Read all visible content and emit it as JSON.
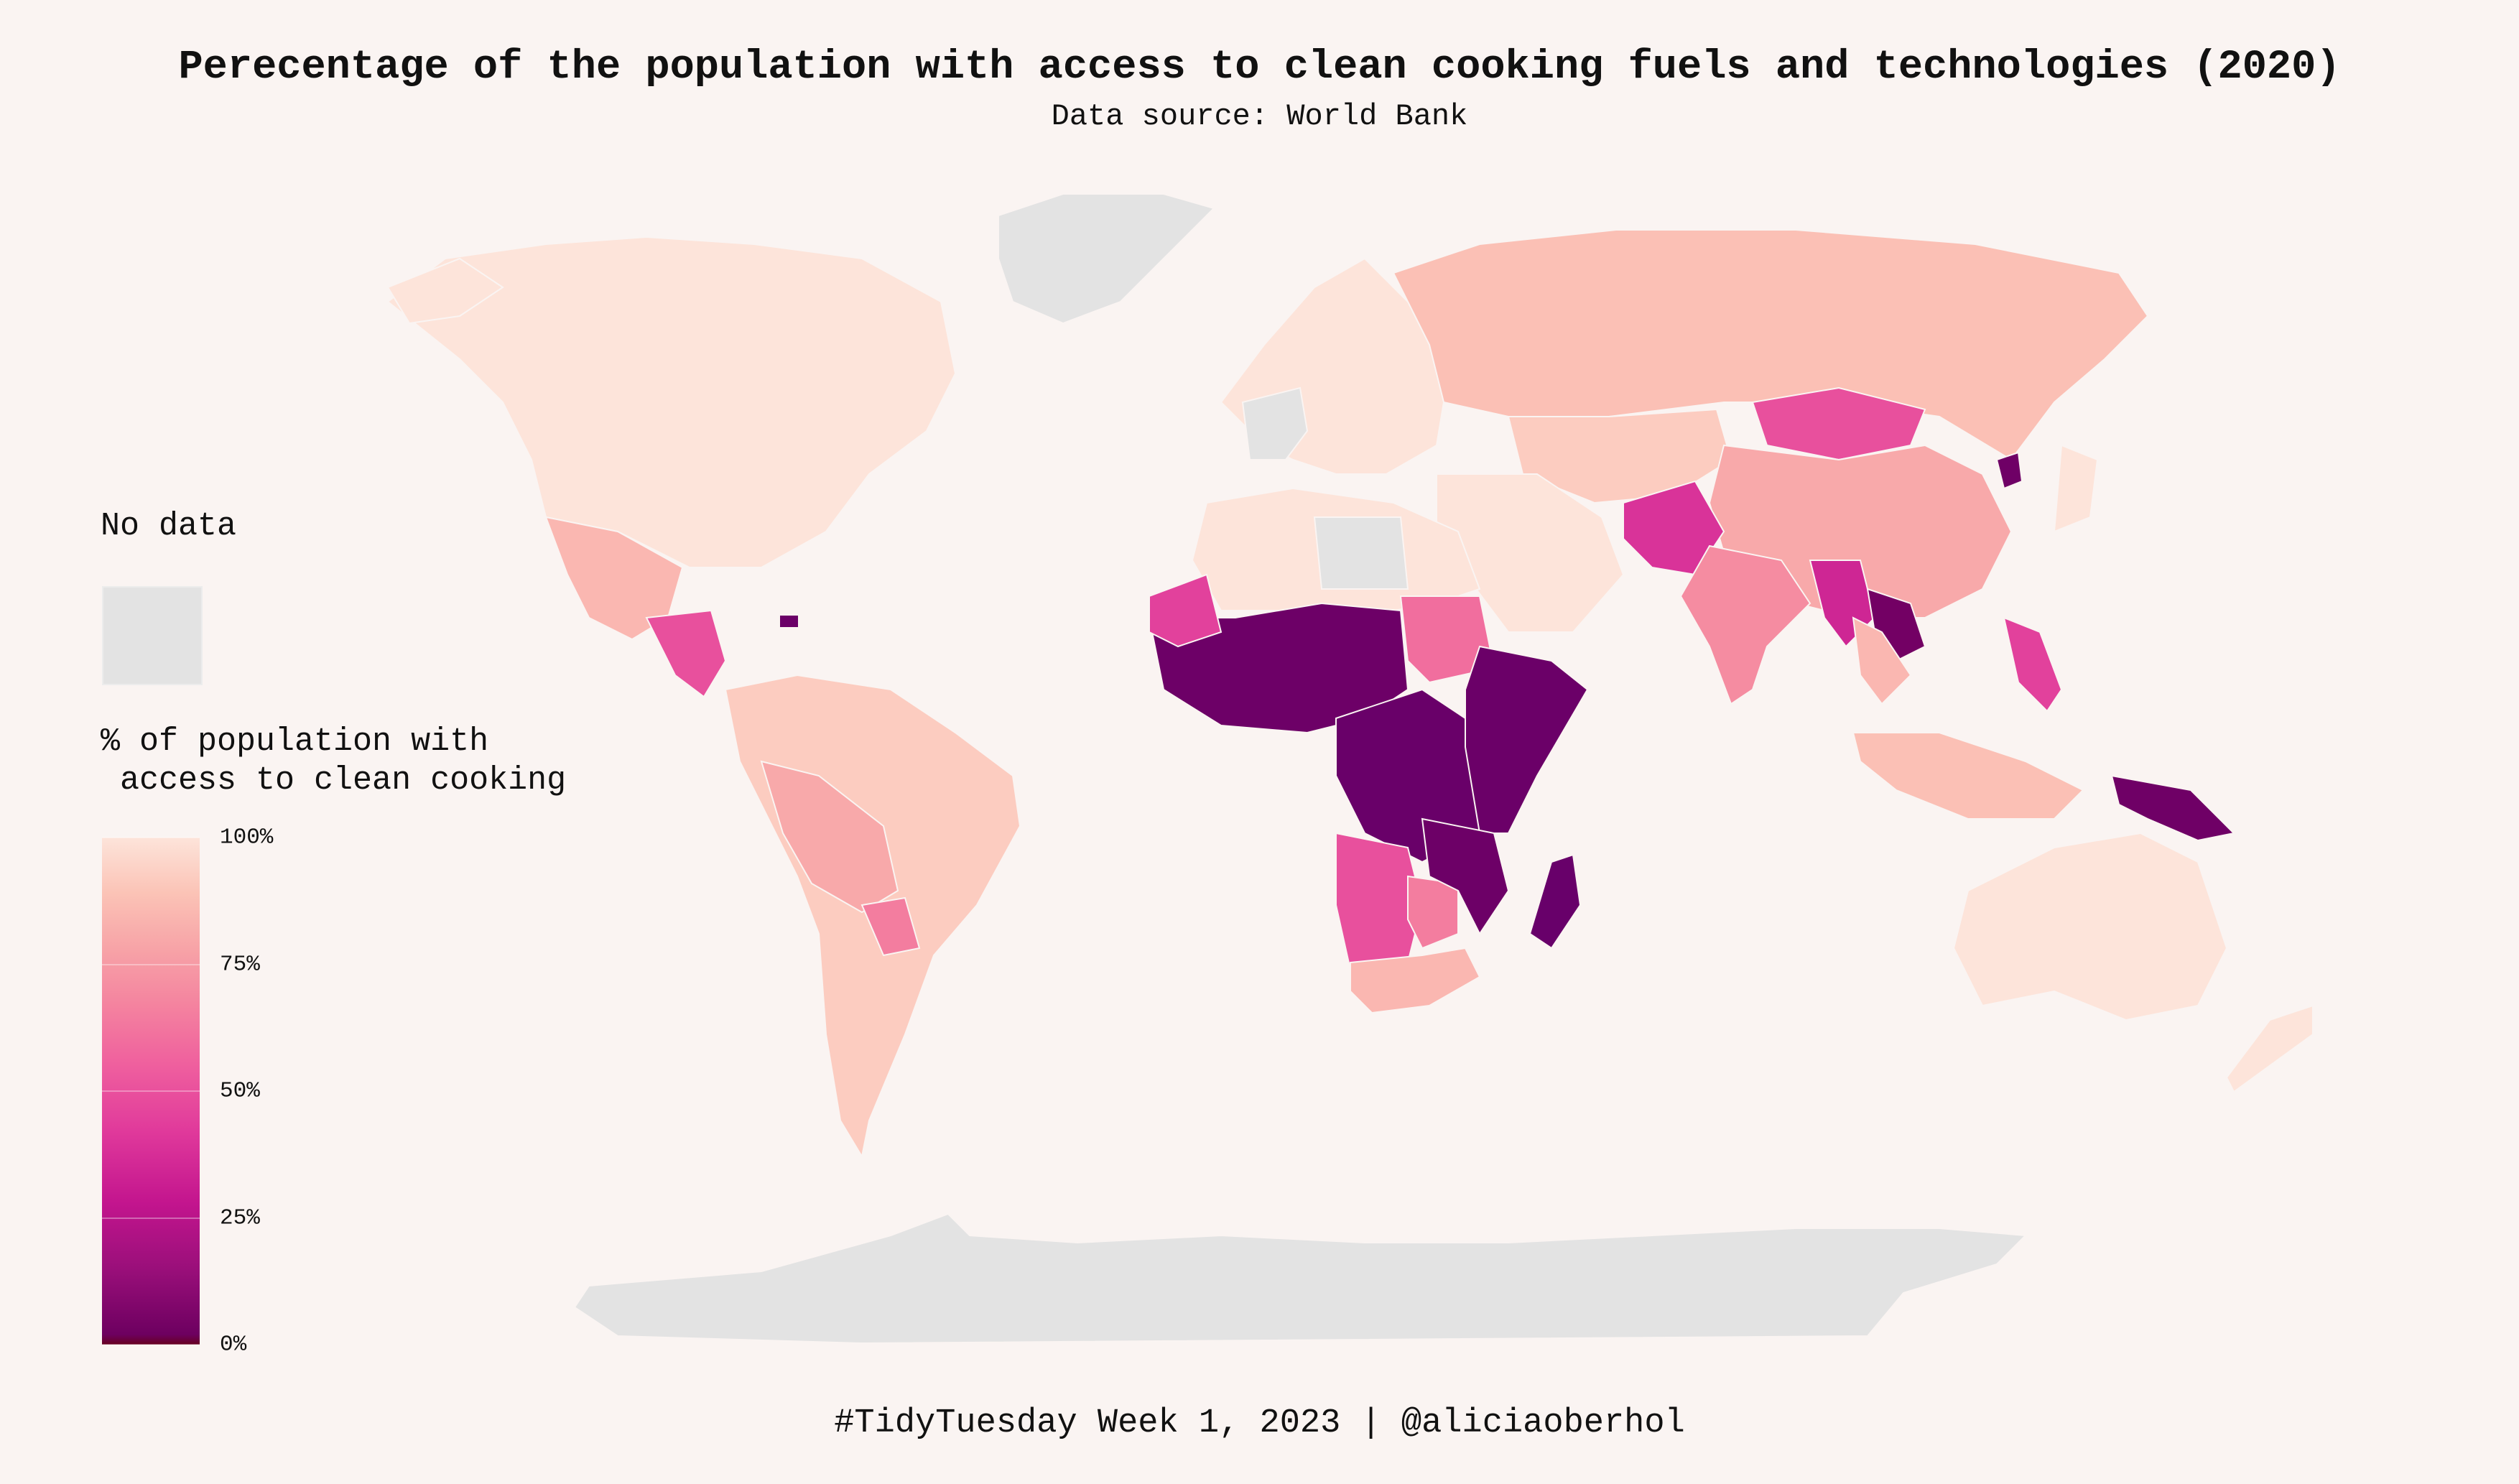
{
  "title": "Perecentage of the population with access to clean cooking fuels and technologies (2020)",
  "subtitle": "Data source: World Bank",
  "caption": "#TidyTuesday Week 1, 2023 | @aliciaoberhol",
  "legend": {
    "nodata_label": "No data",
    "scale_title": "% of population with\n access to clean cooking",
    "ticks": [
      {
        "label": "100%",
        "value": 100
      },
      {
        "label": "75%",
        "value": 75
      },
      {
        "label": "50%",
        "value": 50
      },
      {
        "label": "25%",
        "value": 25
      },
      {
        "label": "0%",
        "value": 0
      }
    ]
  },
  "colors": {
    "background": "#faf4f2",
    "no_data": "#e3e3e3",
    "scale_low": "#67006a",
    "scale_mid": "#e0399b",
    "scale_high": "#fde4da"
  },
  "map_data": [
    {
      "region": "North America",
      "value": 100
    },
    {
      "region": "Alaska",
      "value": 100
    },
    {
      "region": "Mexico",
      "value": 85
    },
    {
      "region": "Central America",
      "value": 50
    },
    {
      "region": "South America",
      "value": 92
    },
    {
      "region": "Peru and Bolivia",
      "value": 80
    },
    {
      "region": "Paraguay",
      "value": 65
    },
    {
      "region": "Haiti",
      "value": 5
    },
    {
      "region": "Greenland",
      "value": null
    },
    {
      "region": "Europe",
      "value": 100
    },
    {
      "region": "France and Iberia",
      "value": null
    },
    {
      "region": "Russia",
      "value": 88
    },
    {
      "region": "Central Asia",
      "value": 92
    },
    {
      "region": "Mongolia",
      "value": 50
    },
    {
      "region": "China",
      "value": 80
    },
    {
      "region": "North Korea",
      "value": 10
    },
    {
      "region": "Japan",
      "value": 100
    },
    {
      "region": "Middle East",
      "value": 100
    },
    {
      "region": "Afghanistan and Pakistan",
      "value": 40
    },
    {
      "region": "India",
      "value": 70
    },
    {
      "region": "Myanmar",
      "value": 35
    },
    {
      "region": "Laos and Cambodia",
      "value": 15
    },
    {
      "region": "Vietnam and Thailand",
      "value": 85
    },
    {
      "region": "Indonesia and Malaysia",
      "value": 88
    },
    {
      "region": "Philippines",
      "value": 45
    },
    {
      "region": "Papua New Guinea",
      "value": 10
    },
    {
      "region": "Australia",
      "value": 100
    },
    {
      "region": "New Zealand",
      "value": 100
    },
    {
      "region": "North Africa",
      "value": 100
    },
    {
      "region": "Libya",
      "value": null
    },
    {
      "region": "Sahel and West Africa",
      "value": 8
    },
    {
      "region": "Senegal and Mauritania",
      "value": 45
    },
    {
      "region": "Sudan",
      "value": 60
    },
    {
      "region": "Central Africa",
      "value": 3
    },
    {
      "region": "East Africa",
      "value": 5
    },
    {
      "region": "Angola and Namibia",
      "value": 50
    },
    {
      "region": "Southern Africa",
      "value": 85
    },
    {
      "region": "Botswana and Zimbabwe",
      "value": 65
    },
    {
      "region": "Mozambique and Zambia",
      "value": 8
    },
    {
      "region": "Madagascar",
      "value": 1
    },
    {
      "region": "Antarctica",
      "value": null
    }
  ]
}
